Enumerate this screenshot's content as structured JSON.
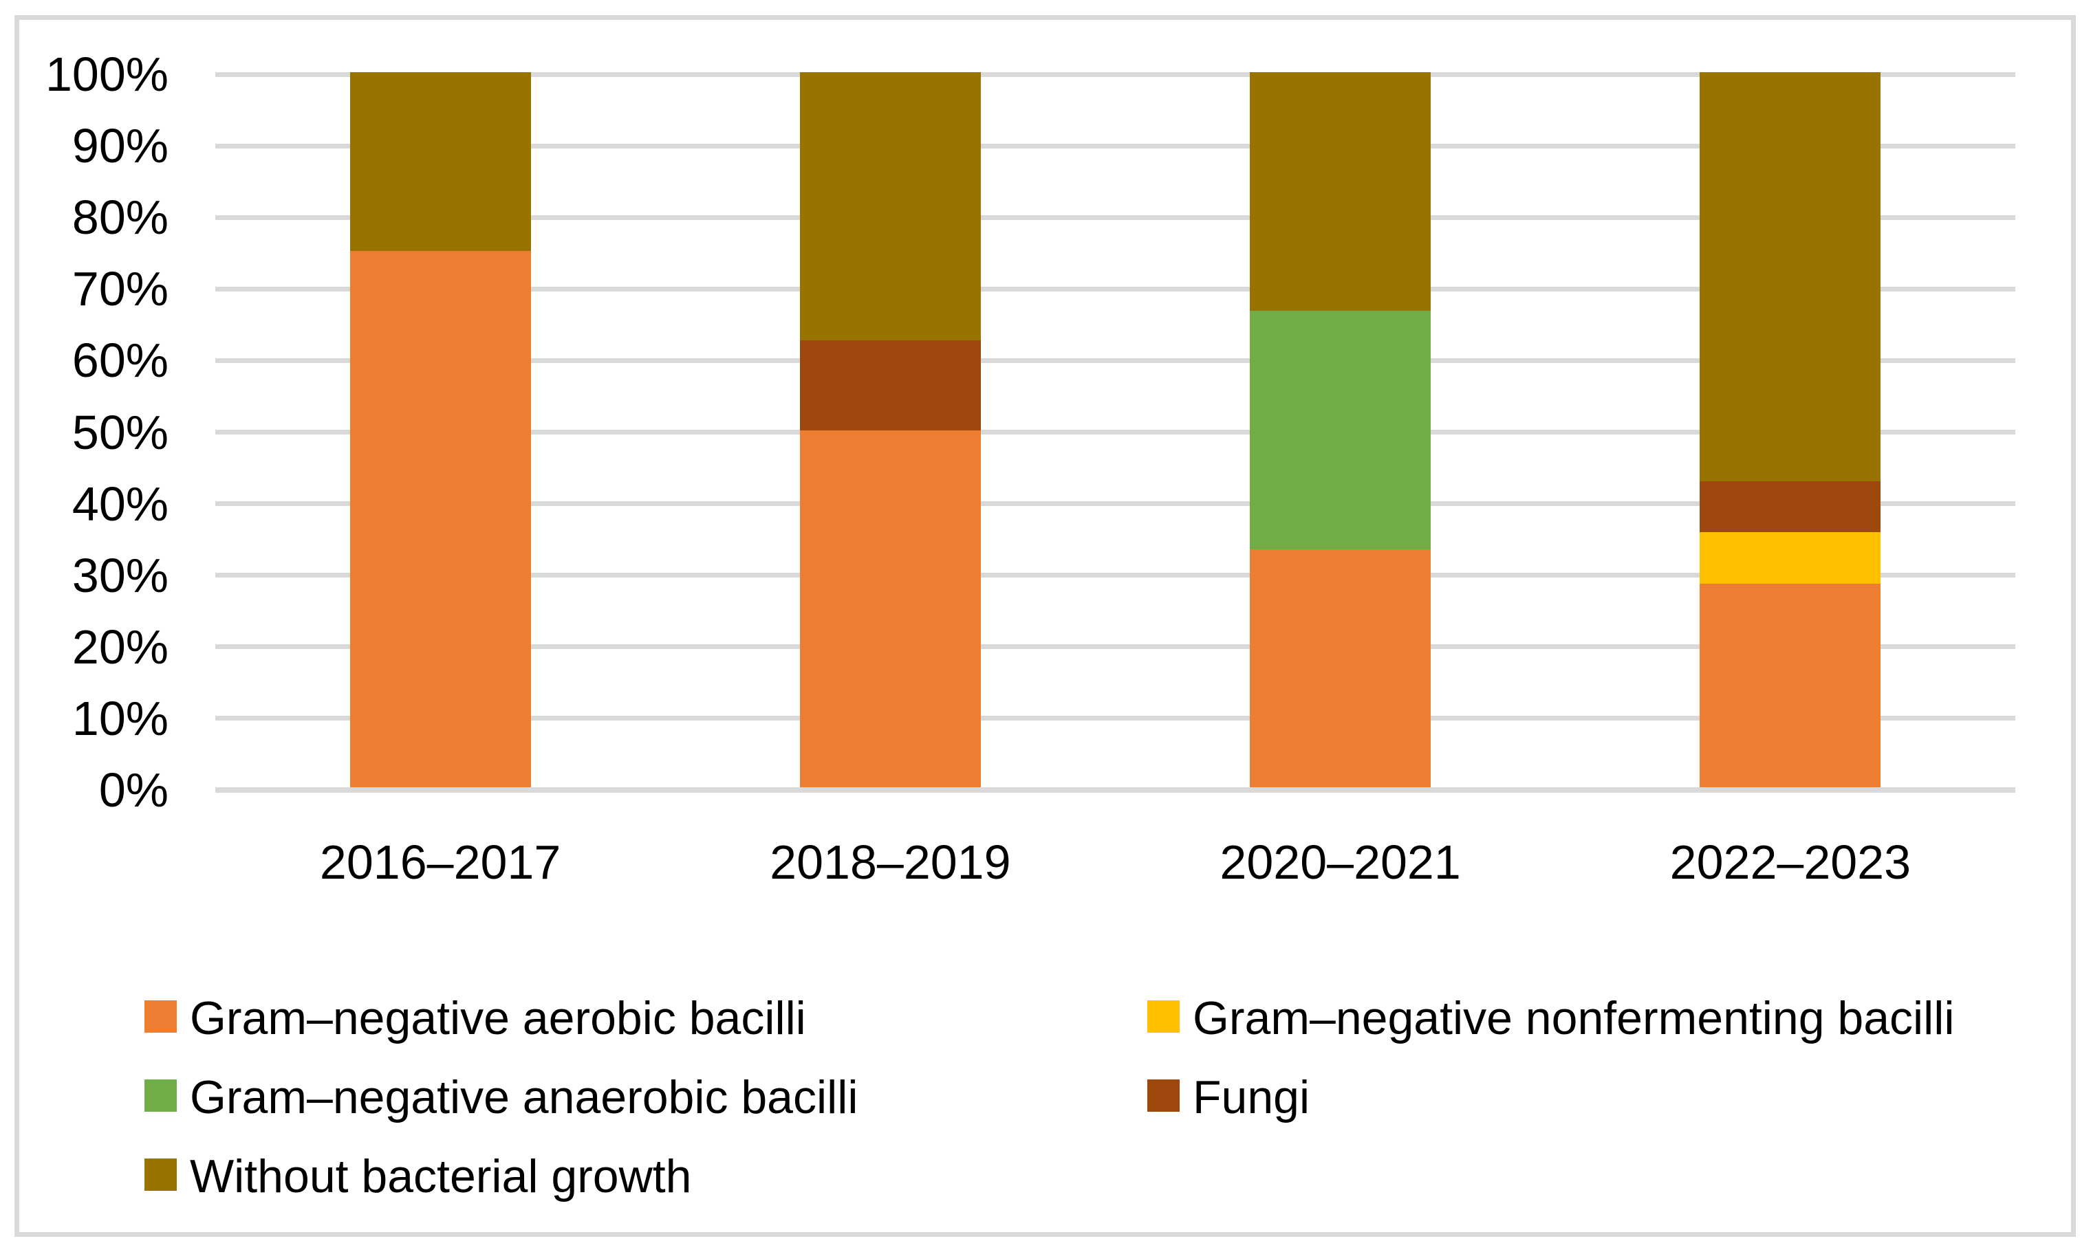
{
  "figure": {
    "background": "#FFFFFF",
    "border_color": "#D9D9D9"
  },
  "chart_data": {
    "type": "bar",
    "subtype": "stacked-100-percent-column",
    "title": "",
    "xlabel": "",
    "ylabel": "",
    "categories": [
      "2016–2017",
      "2018–2019",
      "2020–2021",
      "2022–2023"
    ],
    "series": [
      {
        "name": "Gram–negative aerobic bacilli",
        "color": "#ED7D31",
        "values": [
          75,
          50,
          33.333,
          28.571
        ]
      },
      {
        "name": "Gram–negative nonfermenting bacilli",
        "color": "#FFC000",
        "values": [
          0,
          0,
          0,
          7.143
        ]
      },
      {
        "name": "Gram–negative anaerobic bacilli",
        "color": "#70AD47",
        "values": [
          0,
          0,
          33.333,
          0
        ]
      },
      {
        "name": "Fungi",
        "color": "#9E480E",
        "values": [
          0,
          12.5,
          0,
          7.143
        ]
      },
      {
        "name": "Without bacterial growth",
        "color": "#997300",
        "values": [
          25,
          37.5,
          33.334,
          57.143
        ]
      }
    ],
    "y_ticks": [
      "0%",
      "10%",
      "20%",
      "30%",
      "40%",
      "50%",
      "60%",
      "70%",
      "80%",
      "90%",
      "100%"
    ],
    "ylim": [
      0,
      100
    ],
    "grid": true,
    "gridline_color": "#D9D9D9",
    "legend_position": "bottom",
    "legend_layout": "two-columns-three-rows"
  }
}
